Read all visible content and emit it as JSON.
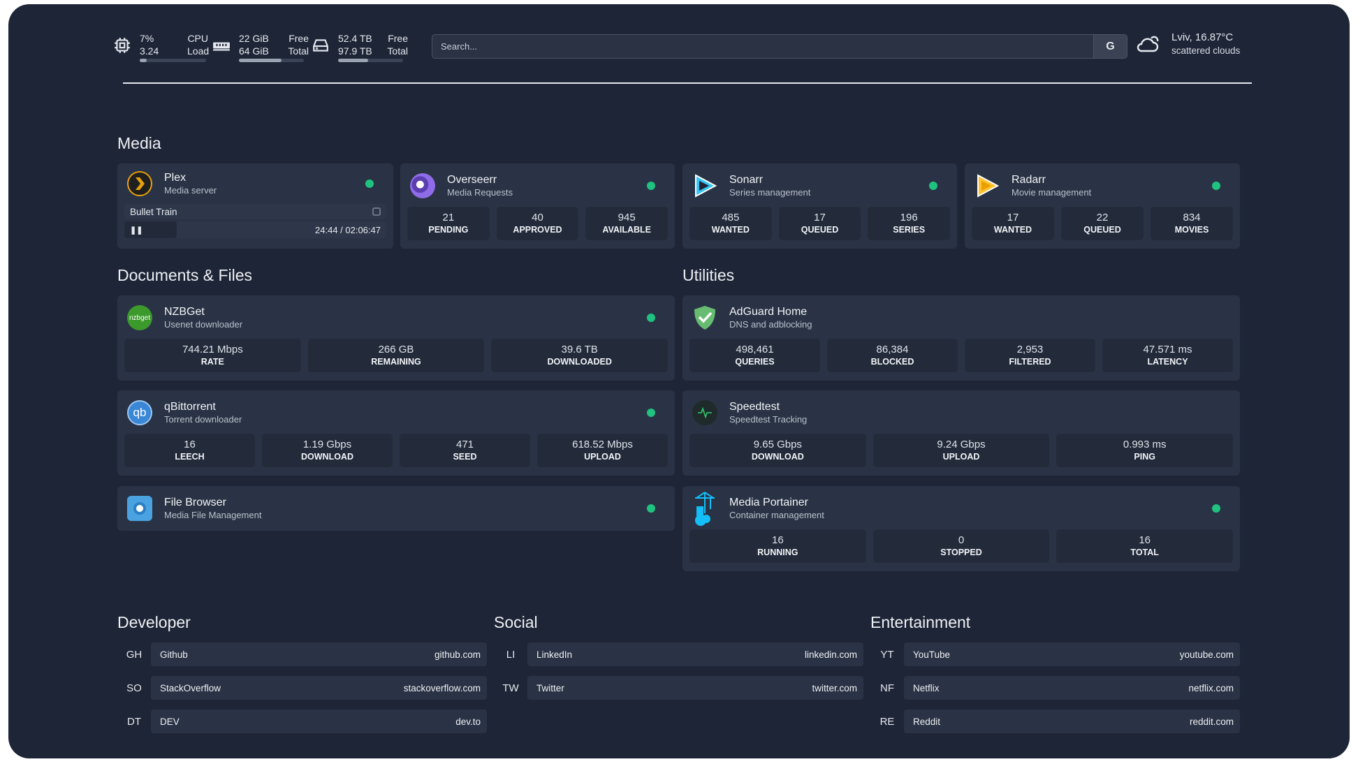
{
  "header": {
    "cpu": {
      "icon": "cpu-icon",
      "value1": "7%",
      "value2": "3.24",
      "label1": "CPU",
      "label2": "Load",
      "percent": 7
    },
    "memory": {
      "icon": "memory-icon",
      "value1": "22 GiB",
      "value2": "64 GiB",
      "label1": "Free",
      "label2": "Total",
      "percent": 66
    },
    "disk": {
      "icon": "disk-icon",
      "value1": "52.4 TB",
      "value2": "97.9 TB",
      "label1": "Free",
      "label2": "Total",
      "percent": 46
    },
    "search": {
      "placeholder": "Search...",
      "button": "G"
    },
    "weather": {
      "icon": "cloud-icon",
      "location": "Lviv, 16.87°C",
      "condition": "scattered clouds"
    }
  },
  "media": {
    "title": "Media",
    "cards": [
      {
        "name": "Plex",
        "sub": "Media server",
        "now_playing": "Bullet Train",
        "time": "24:44 / 02:06:47",
        "progress_percent": 20
      },
      {
        "name": "Overseerr",
        "sub": "Media Requests",
        "stats": [
          {
            "v": "21",
            "l": "PENDING"
          },
          {
            "v": "40",
            "l": "APPROVED"
          },
          {
            "v": "945",
            "l": "AVAILABLE"
          }
        ]
      },
      {
        "name": "Sonarr",
        "sub": "Series management",
        "stats": [
          {
            "v": "485",
            "l": "WANTED"
          },
          {
            "v": "17",
            "l": "QUEUED"
          },
          {
            "v": "196",
            "l": "SERIES"
          }
        ]
      },
      {
        "name": "Radarr",
        "sub": "Movie management",
        "stats": [
          {
            "v": "17",
            "l": "WANTED"
          },
          {
            "v": "22",
            "l": "QUEUED"
          },
          {
            "v": "834",
            "l": "MOVIES"
          }
        ]
      }
    ]
  },
  "docs": {
    "title": "Documents & Files",
    "cards": [
      {
        "name": "NZBGet",
        "sub": "Usenet downloader",
        "icon_text": "nzbget",
        "stats": [
          {
            "v": "744.21 Mbps",
            "l": "RATE"
          },
          {
            "v": "266 GB",
            "l": "REMAINING"
          },
          {
            "v": "39.6 TB",
            "l": "DOWNLOADED"
          }
        ]
      },
      {
        "name": "qBittorrent",
        "sub": "Torrent downloader",
        "icon_text": "qb",
        "stats": [
          {
            "v": "16",
            "l": "LEECH"
          },
          {
            "v": "1.19 Gbps",
            "l": "DOWNLOAD"
          },
          {
            "v": "471",
            "l": "SEED"
          },
          {
            "v": "618.52 Mbps",
            "l": "UPLOAD"
          }
        ]
      },
      {
        "name": "File Browser",
        "sub": "Media File Management"
      }
    ]
  },
  "utilities": {
    "title": "Utilities",
    "cards": [
      {
        "name": "AdGuard Home",
        "sub": "DNS and adblocking",
        "stats": [
          {
            "v": "498,461",
            "l": "QUERIES"
          },
          {
            "v": "86,384",
            "l": "BLOCKED"
          },
          {
            "v": "2,953",
            "l": "FILTERED"
          },
          {
            "v": "47.571 ms",
            "l": "LATENCY"
          }
        ]
      },
      {
        "name": "Speedtest",
        "sub": "Speedtest Tracking",
        "stats": [
          {
            "v": "9.65 Gbps",
            "l": "DOWNLOAD"
          },
          {
            "v": "9.24 Gbps",
            "l": "UPLOAD"
          },
          {
            "v": "0.993 ms",
            "l": "PING"
          }
        ]
      },
      {
        "name": "Media Portainer",
        "sub": "Container management",
        "stats": [
          {
            "v": "16",
            "l": "RUNNING"
          },
          {
            "v": "0",
            "l": "STOPPED"
          },
          {
            "v": "16",
            "l": "TOTAL"
          }
        ]
      }
    ]
  },
  "bookmarks": [
    {
      "title": "Developer",
      "links": [
        {
          "abbr": "GH",
          "name": "Github",
          "url": "github.com"
        },
        {
          "abbr": "SO",
          "name": "StackOverflow",
          "url": "stackoverflow.com"
        },
        {
          "abbr": "DT",
          "name": "DEV",
          "url": "dev.to"
        }
      ]
    },
    {
      "title": "Social",
      "links": [
        {
          "abbr": "LI",
          "name": "LinkedIn",
          "url": "linkedin.com"
        },
        {
          "abbr": "TW",
          "name": "Twitter",
          "url": "twitter.com"
        }
      ]
    },
    {
      "title": "Entertainment",
      "links": [
        {
          "abbr": "YT",
          "name": "YouTube",
          "url": "youtube.com"
        },
        {
          "abbr": "NF",
          "name": "Netflix",
          "url": "netflix.com"
        },
        {
          "abbr": "RE",
          "name": "Reddit",
          "url": "reddit.com"
        }
      ]
    }
  ],
  "colors": {
    "background": "#1e2536",
    "card": "#2a3345",
    "status_online": "#1fc37f"
  }
}
